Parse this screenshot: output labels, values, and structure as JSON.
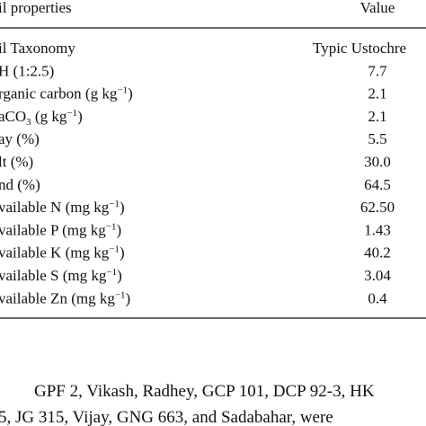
{
  "table": {
    "header": {
      "property": "il properties",
      "value": "Value"
    },
    "rows": [
      {
        "label": {
          "text": "il Taxonomy"
        },
        "value": "Typic Ustochre"
      },
      {
        "label": {
          "text": "H (1:2.5)"
        },
        "value": "7.7"
      },
      {
        "label": {
          "text": "rganic carbon (g kg",
          "sup": "−1",
          "after": ")"
        },
        "value": "2.1"
      },
      {
        "label": {
          "text": "aCO",
          "sub": "3",
          "after": " (g kg",
          "sup": "−1",
          "end": ")"
        },
        "value": "2.1"
      },
      {
        "label": {
          "text": "ay (%)"
        },
        "value": "5.5"
      },
      {
        "label": {
          "text": "lt (%)"
        },
        "value": "30.0"
      },
      {
        "label": {
          "text": "nd (%)"
        },
        "value": "64.5"
      },
      {
        "label": {
          "text": "vailable N (mg kg",
          "sup": "−1",
          "after": ")"
        },
        "value": "62.50"
      },
      {
        "label": {
          "text": "vailable P (mg kg",
          "sup": "−1",
          "after": ")"
        },
        "value": "1.43"
      },
      {
        "label": {
          "text": "vailable K (mg kg",
          "sup": "−1",
          "after": ")"
        },
        "value": "40.2"
      },
      {
        "label": {
          "text": "vailable S (mg kg",
          "sup": "−1",
          "after": ")"
        },
        "value": "3.04"
      },
      {
        "label": {
          "text": "vailable Zn (mg kg",
          "sup": "−1",
          "after": ")"
        },
        "value": "0.4"
      }
    ]
  },
  "paragraph": {
    "lines": [
      "GPF 2, Vikash, Radhey, GCP 101, DCP 92-3, HK",
      "5, JG 315, Vijay, GNG 663, and Sadabahar, were"
    ]
  }
}
